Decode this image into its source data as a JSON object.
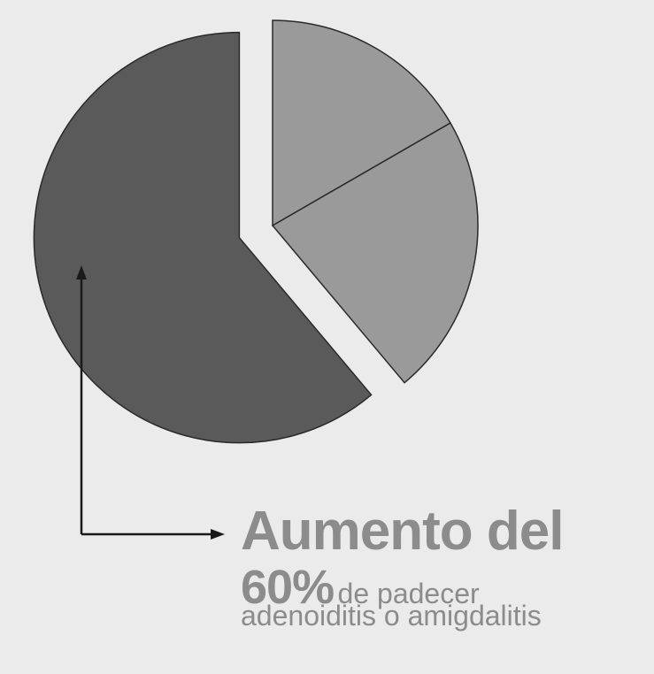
{
  "chart_data": {
    "type": "pie",
    "title": "",
    "slices": [
      {
        "value": 16.67,
        "color": "#9a9a9a",
        "exploded": false
      },
      {
        "value": 22.22,
        "color": "#9a9a9a",
        "exploded": false
      },
      {
        "value": 61.11,
        "color": "#5a5a5a",
        "exploded": true
      }
    ],
    "start_angle_deg": 0,
    "direction": "clockwise",
    "legend": "none"
  },
  "callout": {
    "headline": "Aumento del",
    "percent": "60%",
    "text_rest": "de padecer",
    "text_line3": "adenoiditis o amigdalitis",
    "color": "#8c8c8c"
  },
  "colors": {
    "background": "#ebebeb",
    "slice_outline": "#2a2a2a",
    "arrow": "#1a1a1a"
  }
}
